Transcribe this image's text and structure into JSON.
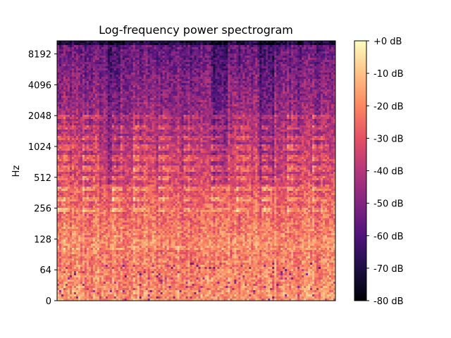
{
  "chart_data": {
    "type": "heatmap",
    "title": "Log-frequency power spectrogram",
    "xlabel": "",
    "ylabel": "Hz",
    "y_scale": "log2",
    "y_ticks": [
      "0",
      "64",
      "128",
      "256",
      "512",
      "1024",
      "2048",
      "4096",
      "8192"
    ],
    "y_range_hz": [
      0,
      11025
    ],
    "colormap": "magma",
    "colorbar": {
      "ticks": [
        "+0 dB",
        "-10 dB",
        "-20 dB",
        "-30 dB",
        "-40 dB",
        "-50 dB",
        "-60 dB",
        "-70 dB",
        "-80 dB"
      ],
      "range_db": [
        -80,
        0
      ]
    },
    "x_ticks_shown": false,
    "harmonic_bands_hz": [
      256,
      320,
      400,
      512,
      640,
      800,
      1024,
      1280,
      1600,
      2048
    ],
    "note_onset_fractions": [
      0.0,
      0.09,
      0.19,
      0.27,
      0.36,
      0.45,
      0.55,
      0.64,
      0.73,
      0.82,
      0.91
    ]
  },
  "colors": {
    "axis": "#000000",
    "background": "#ffffff"
  }
}
